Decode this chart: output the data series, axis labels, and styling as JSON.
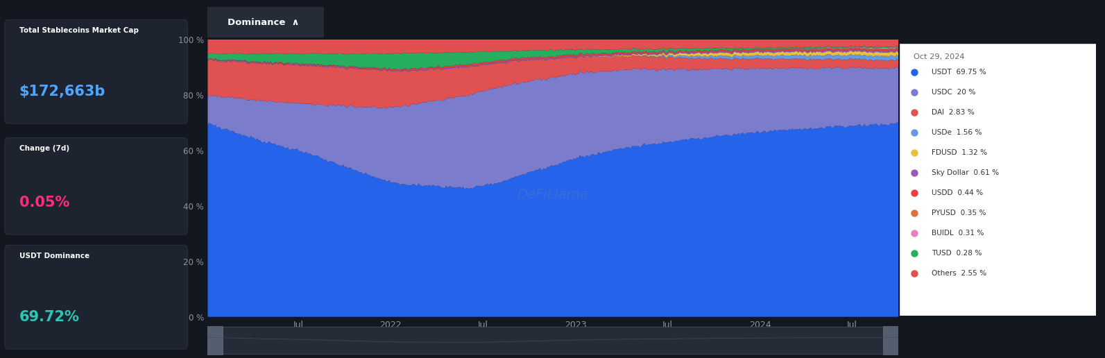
{
  "bg_color": "#13171f",
  "panel_bg": "#1e2330",
  "left_panels": [
    {
      "label": "Total Stablecoins Market Cap",
      "value": "$172,663b",
      "value_color": "#4da6ff"
    },
    {
      "label": "Change (7d)",
      "value": "0.05%",
      "value_color": "#ff2d78"
    },
    {
      "label": "USDT Dominance",
      "value": "69.72%",
      "value_color": "#2ec4b6"
    }
  ],
  "chart_title": "Dominance",
  "tooltip_date": "Oct 29, 2024",
  "legend_items": [
    {
      "label": "USDT",
      "pct": "69.75 %",
      "color": "#2563eb"
    },
    {
      "label": "USDC",
      "pct": "20 %",
      "color": "#7c7ccd"
    },
    {
      "label": "DAI",
      "pct": "2.83 %",
      "color": "#e05252"
    },
    {
      "label": "USDe",
      "pct": "1.56 %",
      "color": "#6699dd"
    },
    {
      "label": "FDUSD",
      "pct": "1.32 %",
      "color": "#e8c040"
    },
    {
      "label": "Sky Dollar",
      "pct": "0.61 %",
      "color": "#9b59b6"
    },
    {
      "label": "USDD",
      "pct": "0.44 %",
      "color": "#e84040"
    },
    {
      "label": "PYUSD",
      "pct": "0.35 %",
      "color": "#e07040"
    },
    {
      "label": "BUIDL",
      "pct": "0.31 %",
      "color": "#e880c0"
    },
    {
      "label": "TUSD",
      "pct": "0.28 %",
      "color": "#27ae60"
    },
    {
      "label": "Others",
      "pct": "2.55 %",
      "color": "#e05050"
    }
  ],
  "series_colors": [
    "#2563eb",
    "#7c7ccd",
    "#e05252",
    "#6699dd",
    "#e8c040",
    "#9b59b6",
    "#e84040",
    "#e07040",
    "#e880c0",
    "#27ae60",
    "#e05050"
  ],
  "ytick_vals": [
    0,
    20,
    40,
    60,
    80,
    100
  ],
  "ytick_labels": [
    "0 %",
    "20 %",
    "40 %",
    "60 %",
    "80 %",
    "100 %"
  ],
  "xticks_labels": [
    "Jul",
    "2022",
    "Jul",
    "2023",
    "Jul",
    "2024",
    "Jul"
  ],
  "watermark": "DeFiLlama"
}
